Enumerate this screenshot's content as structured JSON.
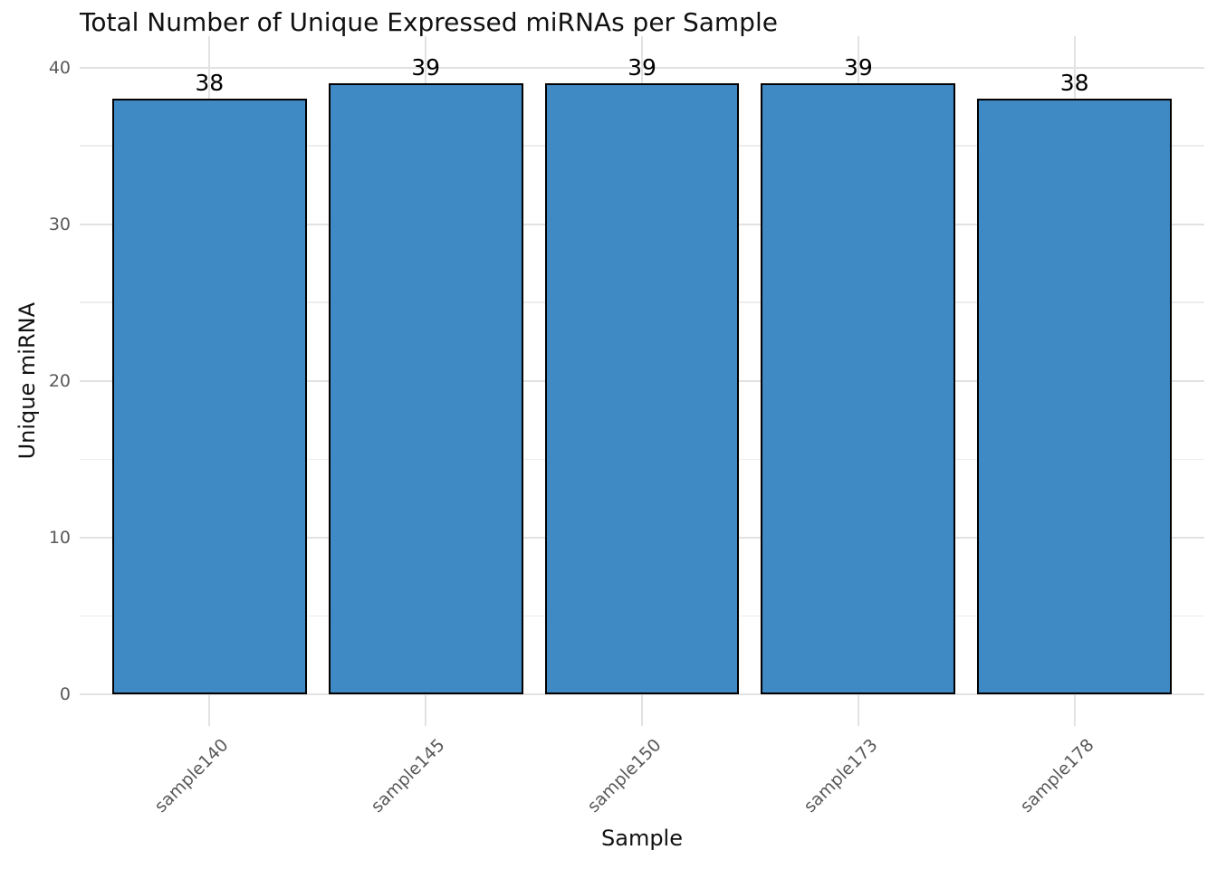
{
  "chart_data": {
    "type": "bar",
    "title": "Total Number of Unique Expressed miRNAs per Sample",
    "xlabel": "Sample",
    "ylabel": "Unique miRNA",
    "categories": [
      "sample140",
      "sample145",
      "sample150",
      "sample173",
      "sample178"
    ],
    "values": [
      38,
      39,
      39,
      39,
      38
    ],
    "bar_value_labels": [
      "38",
      "39",
      "39",
      "39",
      "38"
    ],
    "ylim": [
      -2,
      42
    ],
    "y_major_ticks": [
      0,
      10,
      20,
      30,
      40
    ],
    "y_minor_gridlines": [
      5,
      15,
      25,
      35
    ],
    "xlim": [
      0.4,
      5.6
    ],
    "bar_width": 0.9,
    "x_tick_rotation_deg": 45,
    "grid": "major horizontal + minor horizontal + major vertical",
    "legend": "none",
    "colors": {
      "bar_fill": "#3f8ac4",
      "bar_edge": "#000000",
      "grid_major": "#e2e2e2",
      "grid_minor": "#ededed",
      "tick_label": "#595959",
      "title_text": "#111111",
      "background": "#ffffff"
    }
  }
}
